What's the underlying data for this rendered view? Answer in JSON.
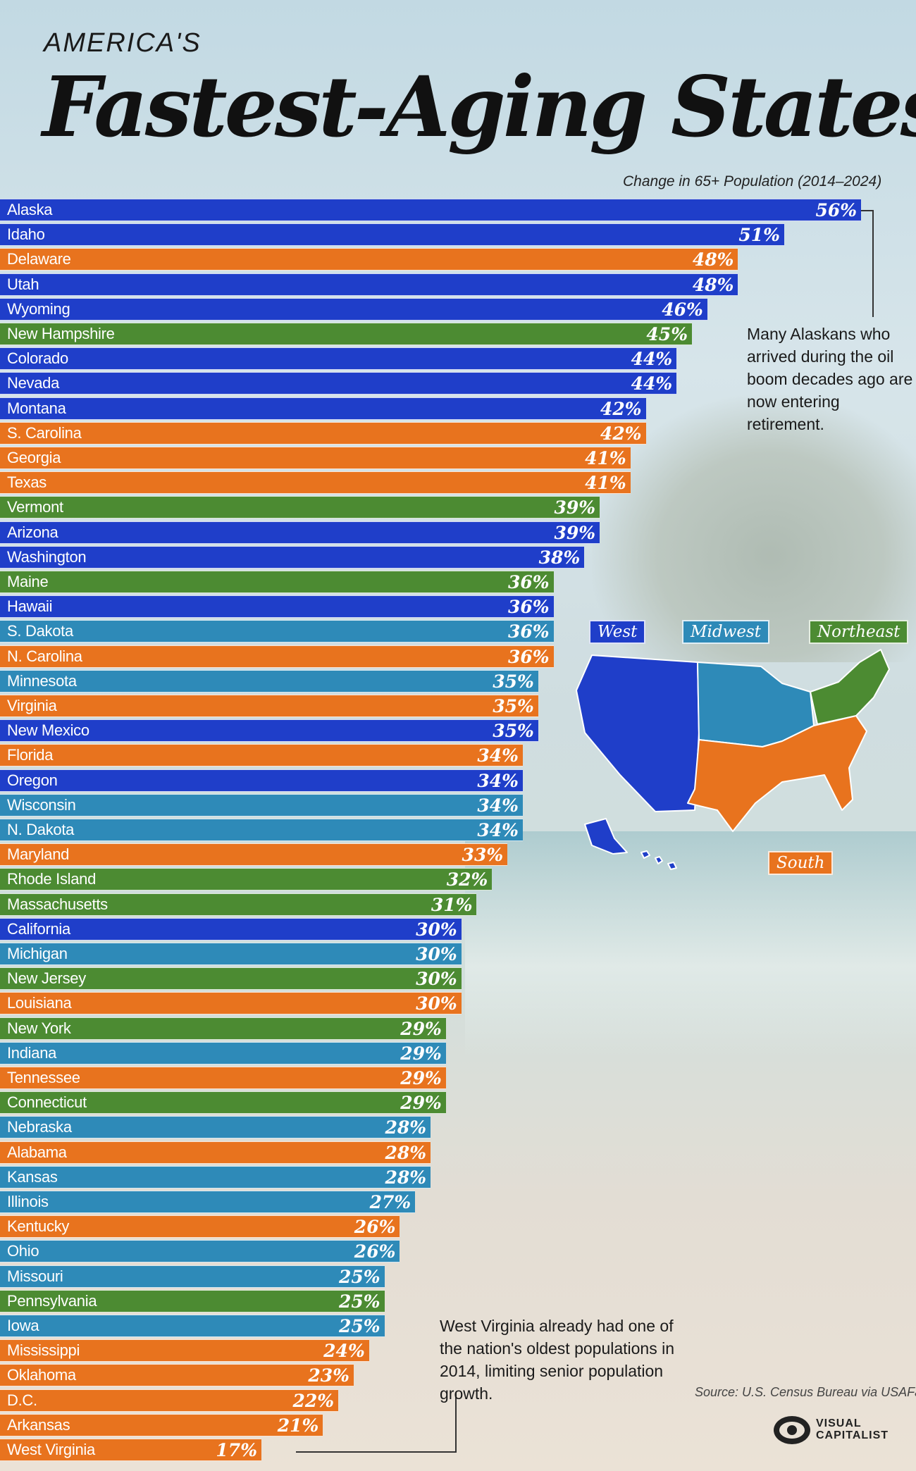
{
  "header": {
    "pretitle": "AMERICA'S",
    "title": "Fastest-Aging States",
    "subtitle": "Change in 65+ Population (2014–2024)"
  },
  "colors": {
    "West": "#1f3ec9",
    "Midwest": "#2e8ab8",
    "Northeast": "#4c8b32",
    "South": "#e8731e"
  },
  "legend": {
    "west": "West",
    "midwest": "Midwest",
    "northeast": "Northeast",
    "south": "South"
  },
  "annotations": {
    "alaska": "Many Alaskans who arrived during the oil boom decades ago are now entering retirement.",
    "west_virginia": "West Virginia already had one of the nation's oldest populations in 2014, limiting senior population growth."
  },
  "footer": {
    "source": "Source: U.S. Census Bureau via USAFacts",
    "logo_line1": "VISUAL",
    "logo_line2": "CAPITALIST"
  },
  "chart_data": {
    "type": "bar",
    "orientation": "horizontal",
    "title": "Fastest-Aging States",
    "subtitle": "Change in 65+ Population (2014–2024)",
    "unit": "%",
    "xlim": [
      0,
      56
    ],
    "legend_placement": "right",
    "bars": [
      {
        "state": "Alaska",
        "value": 56,
        "region": "West"
      },
      {
        "state": "Idaho",
        "value": 51,
        "region": "West"
      },
      {
        "state": "Delaware",
        "value": 48,
        "region": "South"
      },
      {
        "state": "Utah",
        "value": 48,
        "region": "West"
      },
      {
        "state": "Wyoming",
        "value": 46,
        "region": "West"
      },
      {
        "state": "New Hampshire",
        "value": 45,
        "region": "Northeast"
      },
      {
        "state": "Colorado",
        "value": 44,
        "region": "West"
      },
      {
        "state": "Nevada",
        "value": 44,
        "region": "West"
      },
      {
        "state": "Montana",
        "value": 42,
        "region": "West"
      },
      {
        "state": "S. Carolina",
        "value": 42,
        "region": "South"
      },
      {
        "state": "Georgia",
        "value": 41,
        "region": "South"
      },
      {
        "state": "Texas",
        "value": 41,
        "region": "South"
      },
      {
        "state": "Vermont",
        "value": 39,
        "region": "Northeast"
      },
      {
        "state": "Arizona",
        "value": 39,
        "region": "West"
      },
      {
        "state": "Washington",
        "value": 38,
        "region": "West"
      },
      {
        "state": "Maine",
        "value": 36,
        "region": "Northeast"
      },
      {
        "state": "Hawaii",
        "value": 36,
        "region": "West"
      },
      {
        "state": "S. Dakota",
        "value": 36,
        "region": "Midwest"
      },
      {
        "state": "N. Carolina",
        "value": 36,
        "region": "South"
      },
      {
        "state": "Minnesota",
        "value": 35,
        "region": "Midwest"
      },
      {
        "state": "Virginia",
        "value": 35,
        "region": "South"
      },
      {
        "state": "New Mexico",
        "value": 35,
        "region": "West"
      },
      {
        "state": "Florida",
        "value": 34,
        "region": "South"
      },
      {
        "state": "Oregon",
        "value": 34,
        "region": "West"
      },
      {
        "state": "Wisconsin",
        "value": 34,
        "region": "Midwest"
      },
      {
        "state": "N. Dakota",
        "value": 34,
        "region": "Midwest"
      },
      {
        "state": "Maryland",
        "value": 33,
        "region": "South"
      },
      {
        "state": "Rhode Island",
        "value": 32,
        "region": "Northeast"
      },
      {
        "state": "Massachusetts",
        "value": 31,
        "region": "Northeast"
      },
      {
        "state": "California",
        "value": 30,
        "region": "West"
      },
      {
        "state": "Michigan",
        "value": 30,
        "region": "Midwest"
      },
      {
        "state": "New Jersey",
        "value": 30,
        "region": "Northeast"
      },
      {
        "state": "Louisiana",
        "value": 30,
        "region": "South"
      },
      {
        "state": "New York",
        "value": 29,
        "region": "Northeast"
      },
      {
        "state": "Indiana",
        "value": 29,
        "region": "Midwest"
      },
      {
        "state": "Tennessee",
        "value": 29,
        "region": "South"
      },
      {
        "state": "Connecticut",
        "value": 29,
        "region": "Northeast"
      },
      {
        "state": "Nebraska",
        "value": 28,
        "region": "Midwest"
      },
      {
        "state": "Alabama",
        "value": 28,
        "region": "South"
      },
      {
        "state": "Kansas",
        "value": 28,
        "region": "Midwest"
      },
      {
        "state": "Illinois",
        "value": 27,
        "region": "Midwest"
      },
      {
        "state": "Kentucky",
        "value": 26,
        "region": "South"
      },
      {
        "state": "Ohio",
        "value": 26,
        "region": "Midwest"
      },
      {
        "state": "Missouri",
        "value": 25,
        "region": "Midwest"
      },
      {
        "state": "Pennsylvania",
        "value": 25,
        "region": "Northeast"
      },
      {
        "state": "Iowa",
        "value": 25,
        "region": "Midwest"
      },
      {
        "state": "Mississippi",
        "value": 24,
        "region": "South"
      },
      {
        "state": "Oklahoma",
        "value": 23,
        "region": "South"
      },
      {
        "state": "D.C.",
        "value": 22,
        "region": "South"
      },
      {
        "state": "Arkansas",
        "value": 21,
        "region": "South"
      },
      {
        "state": "West Virginia",
        "value": 17,
        "region": "South"
      }
    ]
  }
}
